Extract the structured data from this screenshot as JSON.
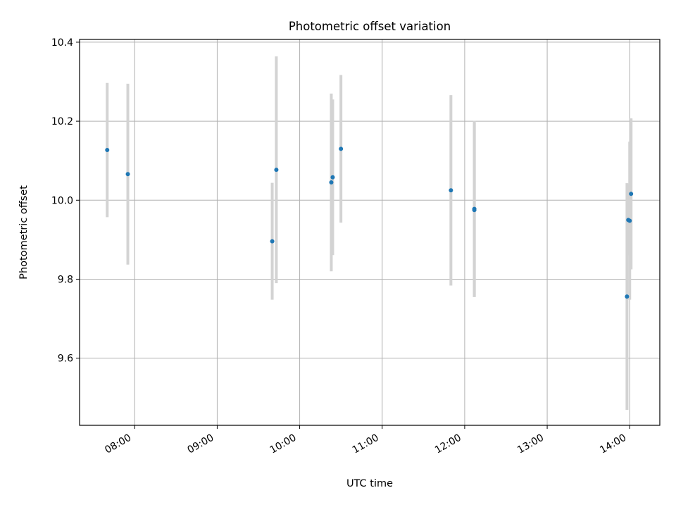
{
  "chart_data": {
    "type": "scatter",
    "title": "Photometric offset variation",
    "xlabel": "UTC time",
    "ylabel": "Photometric offset",
    "x_unit": "hours (UTC)",
    "xlim": [
      7.332,
      14.365
    ],
    "ylim": [
      9.43,
      10.407
    ],
    "grid": true,
    "x_ticks": [
      {
        "value": 8,
        "label": "08:00"
      },
      {
        "value": 9,
        "label": "09:00"
      },
      {
        "value": 10,
        "label": "10:00"
      },
      {
        "value": 11,
        "label": "11:00"
      },
      {
        "value": 12,
        "label": "12:00"
      },
      {
        "value": 13,
        "label": "13:00"
      },
      {
        "value": 14,
        "label": "14:00"
      }
    ],
    "y_ticks": [
      {
        "value": 9.6,
        "label": "9.6"
      },
      {
        "value": 9.8,
        "label": "9.8"
      },
      {
        "value": 10.0,
        "label": "10.0"
      },
      {
        "value": 10.2,
        "label": "10.2"
      },
      {
        "value": 10.4,
        "label": "10.4"
      }
    ],
    "series": [
      {
        "name": "offset",
        "marker_color": "#1f77b4",
        "errorbar_color": "#d3d3d3",
        "points": [
          {
            "x": 7.667,
            "y": 10.127,
            "yerr": 0.17
          },
          {
            "x": 7.917,
            "y": 10.066,
            "yerr": 0.229
          },
          {
            "x": 9.667,
            "y": 9.896,
            "yerr": 0.148
          },
          {
            "x": 9.717,
            "y": 10.077,
            "yerr": 0.287
          },
          {
            "x": 10.383,
            "y": 10.045,
            "yerr": 0.225
          },
          {
            "x": 10.4,
            "y": 10.058,
            "yerr": 0.197
          },
          {
            "x": 10.5,
            "y": 10.13,
            "yerr": 0.187
          },
          {
            "x": 11.833,
            "y": 10.025,
            "yerr": 0.241
          },
          {
            "x": 12.117,
            "y": 9.978,
            "yerr": 0.223
          },
          {
            "x": 12.117,
            "y": 9.975,
            "yerr": 0.22
          },
          {
            "x": 13.967,
            "y": 9.756,
            "yerr": 0.287
          },
          {
            "x": 13.983,
            "y": 9.95,
            "yerr": 0.09
          },
          {
            "x": 14.0,
            "y": 9.948,
            "yerr": 0.2
          },
          {
            "x": 14.017,
            "y": 10.016,
            "yerr": 0.191
          }
        ]
      }
    ]
  }
}
